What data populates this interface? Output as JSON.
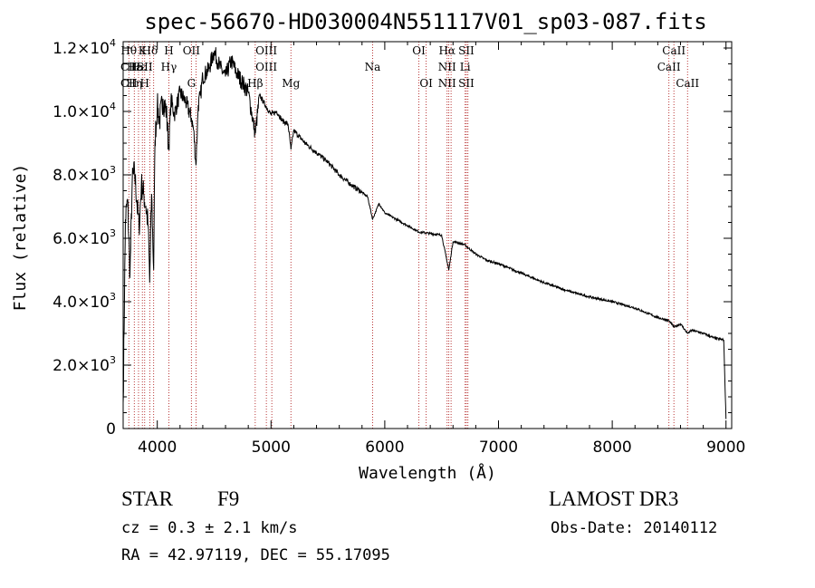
{
  "chart_data": {
    "type": "line",
    "title": "spec-56670-HD030004N551117V01_sp03-087.fits",
    "xlabel": "Wavelength (Å)",
    "ylabel": "Flux (relative)",
    "xlim": [
      3700,
      9050
    ],
    "ylim": [
      0,
      12200
    ],
    "x_ticks": [
      {
        "value": 4000,
        "label": "4000"
      },
      {
        "value": 5000,
        "label": "5000"
      },
      {
        "value": 6000,
        "label": "6000"
      },
      {
        "value": 7000,
        "label": "7000"
      },
      {
        "value": 8000,
        "label": "8000"
      },
      {
        "value": 9000,
        "label": "9000"
      }
    ],
    "y_ticks": [
      {
        "value": 0,
        "mant": "0",
        "exp": ""
      },
      {
        "value": 2000,
        "mant": "2.0×10",
        "exp": "3"
      },
      {
        "value": 4000,
        "mant": "4.0×10",
        "exp": "3"
      },
      {
        "value": 6000,
        "mant": "6.0×10",
        "exp": "3"
      },
      {
        "value": 8000,
        "mant": "8.0×10",
        "exp": "3"
      },
      {
        "value": 10000,
        "mant": "1.0×10",
        "exp": "4"
      },
      {
        "value": 12000,
        "mant": "1.2×10",
        "exp": "4"
      }
    ],
    "spectrum": {
      "name": "flux",
      "x": [
        3700,
        3720,
        3740,
        3760,
        3780,
        3800,
        3820,
        3840,
        3860,
        3880,
        3900,
        3920,
        3933,
        3950,
        3968,
        3980,
        4000,
        4020,
        4050,
        4080,
        4101,
        4120,
        4150,
        4200,
        4250,
        4300,
        4320,
        4340,
        4360,
        4380,
        4400,
        4450,
        4500,
        4550,
        4600,
        4650,
        4700,
        4750,
        4800,
        4861,
        4900,
        4950,
        5000,
        5050,
        5100,
        5150,
        5175,
        5200,
        5300,
        5400,
        5500,
        5600,
        5700,
        5800,
        5850,
        5893,
        5950,
        6000,
        6100,
        6200,
        6300,
        6400,
        6500,
        6563,
        6600,
        6700,
        6800,
        6900,
        7000,
        7200,
        7400,
        7600,
        7800,
        8000,
        8200,
        8400,
        8498,
        8542,
        8600,
        8662,
        8700,
        8800,
        8900,
        8980,
        9000
      ],
      "y": [
        800,
        6600,
        7200,
        4800,
        7800,
        8100,
        7200,
        6300,
        7700,
        7400,
        7000,
        6400,
        4600,
        7400,
        5000,
        9100,
        10200,
        9700,
        10400,
        10000,
        8800,
        10400,
        9900,
        10600,
        10300,
        9800,
        9400,
        8300,
        10200,
        10500,
        11100,
        11300,
        11900,
        11400,
        11100,
        11600,
        11200,
        10900,
        10600,
        9300,
        10500,
        10200,
        9900,
        10000,
        9700,
        9600,
        8800,
        9400,
        9000,
        8700,
        8400,
        8000,
        7700,
        7450,
        7300,
        6600,
        7100,
        6800,
        6600,
        6400,
        6200,
        6150,
        6100,
        5000,
        5900,
        5800,
        5500,
        5300,
        5200,
        4900,
        4600,
        4350,
        4150,
        4000,
        3800,
        3500,
        3400,
        3200,
        3300,
        3000,
        3100,
        3000,
        2850,
        2800,
        300
      ]
    },
    "lines": [
      {
        "w": 3750,
        "labels": [
          "Hθ",
          "CII",
          "CII"
        ],
        "rows": [
          0,
          1,
          2
        ]
      },
      {
        "w": 3798,
        "labels": [
          "Hε",
          "Hη"
        ],
        "rows": [
          1,
          2
        ]
      },
      {
        "w": 3835,
        "labels": [
          "Hε"
        ],
        "rows": [
          1
        ]
      },
      {
        "w": 3869,
        "labels": [
          "K"
        ],
        "rows": [
          0
        ]
      },
      {
        "w": 3889,
        "labels": [
          "SII",
          "H"
        ],
        "rows": [
          1,
          2
        ]
      },
      {
        "w": 3934,
        "labels": [
          "Hδ"
        ],
        "rows": [
          0
        ]
      },
      {
        "w": 3968,
        "labels": [],
        "rows": []
      },
      {
        "w": 4102,
        "labels": [
          "H",
          "Hγ"
        ],
        "rows": [
          0,
          1
        ]
      },
      {
        "w": 4300,
        "labels": [
          "OII",
          "G"
        ],
        "rows": [
          0,
          2
        ]
      },
      {
        "w": 4341,
        "labels": [],
        "rows": []
      },
      {
        "w": 4861,
        "labels": [
          "Hβ"
        ],
        "rows": [
          2
        ]
      },
      {
        "w": 4959,
        "labels": [
          "OIII",
          "OIII"
        ],
        "rows": [
          0,
          1
        ]
      },
      {
        "w": 5007,
        "labels": [],
        "rows": []
      },
      {
        "w": 5175,
        "labels": [
          "Mg"
        ],
        "rows": [
          2
        ]
      },
      {
        "w": 5893,
        "labels": [
          "Na"
        ],
        "rows": [
          1
        ]
      },
      {
        "w": 6300,
        "labels": [
          "OI"
        ],
        "rows": [
          0
        ]
      },
      {
        "w": 6364,
        "labels": [
          "OI"
        ],
        "rows": [
          2
        ]
      },
      {
        "w": 6548,
        "labels": [
          "Hα",
          "NII",
          "NII"
        ],
        "rows": [
          0,
          1,
          2
        ]
      },
      {
        "w": 6563,
        "labels": [],
        "rows": []
      },
      {
        "w": 6583,
        "labels": [],
        "rows": []
      },
      {
        "w": 6707,
        "labels": [
          "Li"
        ],
        "rows": [
          1
        ]
      },
      {
        "w": 6717,
        "labels": [
          "SII",
          "SII"
        ],
        "rows": [
          0,
          2
        ]
      },
      {
        "w": 6731,
        "labels": [],
        "rows": []
      },
      {
        "w": 8498,
        "labels": [
          "CaII"
        ],
        "rows": [
          1
        ]
      },
      {
        "w": 8542,
        "labels": [
          "CaII"
        ],
        "rows": [
          0
        ]
      },
      {
        "w": 8662,
        "labels": [
          "CaII"
        ],
        "rows": [
          2
        ]
      }
    ]
  },
  "info": {
    "class": "STAR",
    "subclass": "F9",
    "cz": "cz = 0.3 ± 2.1 km/s",
    "radec": "RA =  42.97119, DEC =  55.17095",
    "survey": "LAMOST DR3",
    "obsdate": "Obs-Date: 20140112"
  }
}
